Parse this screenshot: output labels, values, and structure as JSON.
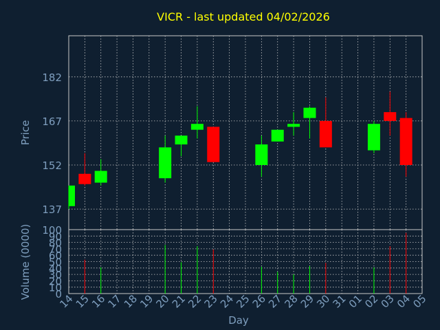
{
  "colors": {
    "background": "#0f1f30",
    "title": "#ffff00",
    "axis_text": "#7f9fbf",
    "grid": "#c8c8c8",
    "frame": "#c8c8c8",
    "up": "#00ff00",
    "down": "#ff0000"
  },
  "chart_data": {
    "type": "candlestick",
    "title": "VICR - last updated 04/02/2026",
    "price_panel": {
      "ylabel": "Price",
      "yticks": [
        137,
        152,
        167,
        182
      ],
      "ylim": [
        130,
        196
      ]
    },
    "volume_panel": {
      "ylabel": "Volume (0000)",
      "yticks": [
        0,
        10,
        20,
        30,
        40,
        50,
        60,
        70,
        80,
        90,
        100
      ],
      "ylim": [
        0,
        100
      ]
    },
    "xlabel": "Day",
    "x_ticks": [
      "14",
      "15",
      "16",
      "17",
      "18",
      "19",
      "20",
      "21",
      "22",
      "23",
      "24",
      "25",
      "26",
      "27",
      "28",
      "29",
      "30",
      "31",
      "01",
      "02",
      "03",
      "04",
      "05"
    ],
    "candles": [
      {
        "idx": 0,
        "open": 138,
        "high": 145,
        "low": 137,
        "close": 145,
        "volume": 0
      },
      {
        "idx": 1,
        "open": 149,
        "high": 156,
        "low": 145,
        "close": 145.5,
        "volume": 53
      },
      {
        "idx": 2,
        "open": 146,
        "high": 154,
        "low": 145,
        "close": 150,
        "volume": 41
      },
      {
        "idx": 6,
        "open": 147.5,
        "high": 162,
        "low": 146,
        "close": 158,
        "volume": 76
      },
      {
        "idx": 7,
        "open": 159,
        "high": 162,
        "low": 155,
        "close": 162,
        "volume": 49
      },
      {
        "idx": 8,
        "open": 164,
        "high": 172,
        "low": 161,
        "close": 166,
        "volume": 74
      },
      {
        "idx": 9,
        "open": 165,
        "high": 165,
        "low": 153,
        "close": 153,
        "volume": 69
      },
      {
        "idx": 12,
        "open": 152,
        "high": 162,
        "low": 148,
        "close": 159,
        "volume": 42
      },
      {
        "idx": 13,
        "open": 160,
        "high": 164,
        "low": 160,
        "close": 164,
        "volume": 34
      },
      {
        "idx": 14,
        "open": 165,
        "high": 170,
        "low": 162,
        "close": 166,
        "volume": 30
      },
      {
        "idx": 15,
        "open": 168,
        "high": 172,
        "low": 161,
        "close": 171.5,
        "volume": 43
      },
      {
        "idx": 16,
        "open": 167,
        "high": 175,
        "low": 158,
        "close": 158,
        "volume": 48
      },
      {
        "idx": 19,
        "open": 157,
        "high": 167,
        "low": 156,
        "close": 166,
        "volume": 41
      },
      {
        "idx": 20,
        "open": 170,
        "high": 177,
        "low": 162,
        "close": 167,
        "volume": 74
      },
      {
        "idx": 21,
        "open": 168,
        "high": 170,
        "low": 148,
        "close": 152,
        "volume": 95
      }
    ]
  }
}
